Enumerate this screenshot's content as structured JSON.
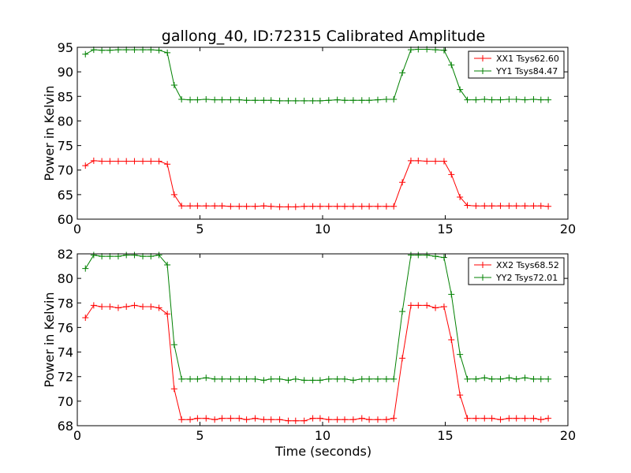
{
  "chart_data": [
    {
      "type": "line",
      "title": "gallong_40, ID:72315 Calibrated Amplitude",
      "xlabel": "",
      "ylabel": "Power in Kelvin",
      "xlim": [
        0,
        20
      ],
      "ylim": [
        60,
        95
      ],
      "xticks": [
        "0",
        "5",
        "10",
        "15",
        "20"
      ],
      "yticks": [
        "60",
        "65",
        "70",
        "75",
        "80",
        "85",
        "90",
        "95"
      ],
      "grid": false,
      "legend_position": "top-right",
      "x": [
        0.33,
        0.67,
        1.0,
        1.33,
        1.67,
        2.0,
        2.33,
        2.67,
        3.0,
        3.33,
        3.67,
        3.95,
        4.25,
        4.6,
        4.9,
        5.25,
        5.6,
        5.9,
        6.25,
        6.6,
        6.9,
        7.25,
        7.6,
        7.9,
        8.25,
        8.6,
        8.9,
        9.25,
        9.6,
        9.9,
        10.25,
        10.6,
        10.9,
        11.25,
        11.6,
        11.9,
        12.25,
        12.6,
        12.9,
        13.25,
        13.6,
        13.9,
        14.25,
        14.6,
        14.95,
        15.25,
        15.6,
        15.9,
        16.25,
        16.6,
        16.9,
        17.25,
        17.6,
        17.9,
        18.25,
        18.6,
        18.9,
        19.2
      ],
      "series": [
        {
          "name": "XX1 Tsys62.60",
          "color": "#ff0000",
          "values": [
            70.9,
            71.9,
            71.8,
            71.8,
            71.8,
            71.8,
            71.8,
            71.8,
            71.8,
            71.8,
            71.2,
            65.0,
            62.7,
            62.7,
            62.7,
            62.7,
            62.7,
            62.7,
            62.6,
            62.6,
            62.6,
            62.6,
            62.7,
            62.6,
            62.5,
            62.5,
            62.5,
            62.6,
            62.6,
            62.6,
            62.6,
            62.6,
            62.6,
            62.6,
            62.6,
            62.6,
            62.6,
            62.6,
            62.6,
            67.5,
            71.9,
            71.9,
            71.8,
            71.8,
            71.8,
            69.1,
            64.5,
            62.8,
            62.7,
            62.7,
            62.7,
            62.7,
            62.7,
            62.7,
            62.7,
            62.7,
            62.7,
            62.6
          ]
        },
        {
          "name": "YY1 Tsys84.47",
          "color": "#008000",
          "values": [
            93.6,
            94.5,
            94.4,
            94.4,
            94.5,
            94.5,
            94.5,
            94.5,
            94.5,
            94.4,
            93.9,
            87.3,
            84.4,
            84.3,
            84.3,
            84.4,
            84.3,
            84.3,
            84.3,
            84.3,
            84.2,
            84.2,
            84.2,
            84.2,
            84.1,
            84.1,
            84.1,
            84.1,
            84.1,
            84.1,
            84.2,
            84.3,
            84.2,
            84.2,
            84.2,
            84.2,
            84.3,
            84.4,
            84.4,
            89.8,
            94.5,
            94.6,
            94.6,
            94.5,
            94.4,
            91.4,
            86.4,
            84.3,
            84.3,
            84.4,
            84.3,
            84.3,
            84.4,
            84.4,
            84.3,
            84.4,
            84.3,
            84.3
          ]
        }
      ]
    },
    {
      "type": "line",
      "title": "",
      "xlabel": "Time (seconds)",
      "ylabel": "Power in Kelvin",
      "xlim": [
        0,
        20
      ],
      "ylim": [
        68,
        82
      ],
      "xticks": [
        "0",
        "5",
        "10",
        "15",
        "20"
      ],
      "yticks": [
        "68",
        "70",
        "72",
        "74",
        "76",
        "78",
        "80",
        "82"
      ],
      "grid": false,
      "legend_position": "top-right",
      "x": [
        0.33,
        0.67,
        1.0,
        1.33,
        1.67,
        2.0,
        2.33,
        2.67,
        3.0,
        3.33,
        3.67,
        3.95,
        4.25,
        4.6,
        4.9,
        5.25,
        5.6,
        5.9,
        6.25,
        6.6,
        6.9,
        7.25,
        7.6,
        7.9,
        8.25,
        8.6,
        8.9,
        9.25,
        9.6,
        9.9,
        10.25,
        10.6,
        10.9,
        11.25,
        11.6,
        11.9,
        12.25,
        12.6,
        12.9,
        13.25,
        13.6,
        13.9,
        14.25,
        14.6,
        14.95,
        15.25,
        15.6,
        15.9,
        16.25,
        16.6,
        16.9,
        17.25,
        17.6,
        17.9,
        18.25,
        18.6,
        18.9,
        19.2
      ],
      "series": [
        {
          "name": "XX2 Tsys68.52",
          "color": "#ff0000",
          "values": [
            76.8,
            77.8,
            77.7,
            77.7,
            77.6,
            77.7,
            77.8,
            77.7,
            77.7,
            77.6,
            77.1,
            71.0,
            68.5,
            68.5,
            68.6,
            68.6,
            68.5,
            68.6,
            68.6,
            68.6,
            68.5,
            68.6,
            68.5,
            68.5,
            68.5,
            68.4,
            68.4,
            68.4,
            68.6,
            68.6,
            68.5,
            68.5,
            68.5,
            68.5,
            68.6,
            68.5,
            68.5,
            68.5,
            68.6,
            73.5,
            77.8,
            77.8,
            77.8,
            77.6,
            77.7,
            75.0,
            70.5,
            68.6,
            68.6,
            68.6,
            68.6,
            68.5,
            68.6,
            68.6,
            68.6,
            68.6,
            68.5,
            68.6
          ]
        },
        {
          "name": "YY2 Tsys72.01",
          "color": "#008000",
          "values": [
            80.8,
            81.9,
            81.8,
            81.8,
            81.8,
            81.9,
            81.9,
            81.8,
            81.8,
            81.9,
            81.1,
            74.6,
            71.8,
            71.8,
            71.8,
            71.9,
            71.8,
            71.8,
            71.8,
            71.8,
            71.8,
            71.8,
            71.7,
            71.8,
            71.8,
            71.7,
            71.8,
            71.7,
            71.7,
            71.7,
            71.8,
            71.8,
            71.8,
            71.7,
            71.8,
            71.8,
            71.8,
            71.8,
            71.8,
            77.3,
            81.9,
            81.9,
            81.9,
            81.8,
            81.7,
            78.7,
            73.8,
            71.8,
            71.8,
            71.9,
            71.8,
            71.8,
            71.9,
            71.8,
            71.9,
            71.8,
            71.8,
            71.8
          ]
        }
      ]
    }
  ]
}
